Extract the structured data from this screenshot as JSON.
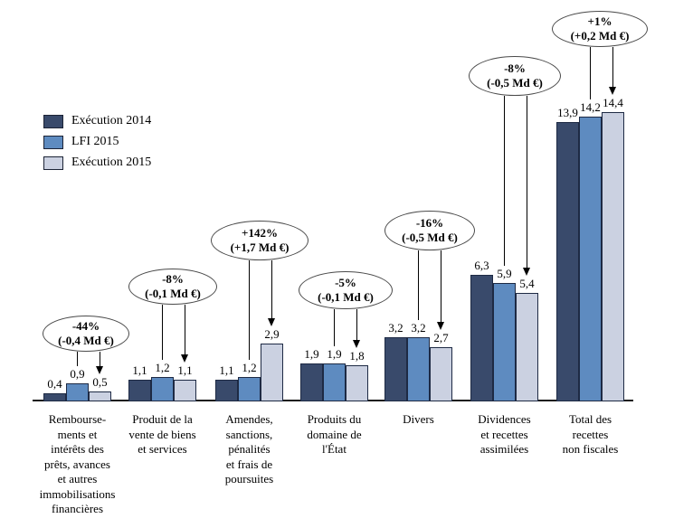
{
  "chart_data": {
    "type": "bar",
    "title": "",
    "unit": "Md €",
    "ylim": [
      0,
      15
    ],
    "grid": false,
    "legend_position": "upper-left",
    "categories": [
      "Rembourse-\nments et\nintérêts des\nprêts, avances\net autres\nimmobilisations\nfinancières",
      "Produit de la\nvente de biens\net services",
      "Amendes,\nsanctions,\npénalités\net frais de\npoursuites",
      "Produits du\ndomaine de\nl'État",
      "Divers",
      "Dividences\net recettes\nassimilées",
      "Total des\nrecettes\nnon fiscales"
    ],
    "series": [
      {
        "name": "Exécution 2014",
        "color": "#394A6B",
        "values": [
          0.4,
          1.1,
          1.1,
          1.9,
          3.2,
          6.3,
          13.9
        ]
      },
      {
        "name": "LFI 2015",
        "color": "#5E8BC0",
        "values": [
          0.9,
          1.2,
          1.2,
          1.9,
          3.2,
          5.9,
          14.2
        ]
      },
      {
        "name": "Exécution 2015",
        "color": "#CBD1E1",
        "values": [
          0.5,
          1.1,
          2.9,
          1.8,
          2.7,
          5.4,
          14.4
        ]
      }
    ],
    "annotations": [
      {
        "pct": "-44%",
        "amount": "(-0,4 Md €)"
      },
      {
        "pct": "-8%",
        "amount": "(-0,1 Md €)"
      },
      {
        "pct": "+142%",
        "amount": "(+1,7 Md €)"
      },
      {
        "pct": "-5%",
        "amount": "(-0,1 Md €)"
      },
      {
        "pct": "-16%",
        "amount": "(-0,5 Md €)"
      },
      {
        "pct": "-8%",
        "amount": "(-0,5 Md €)"
      },
      {
        "pct": "+1%",
        "amount": "(+0,2 Md €)"
      }
    ]
  }
}
